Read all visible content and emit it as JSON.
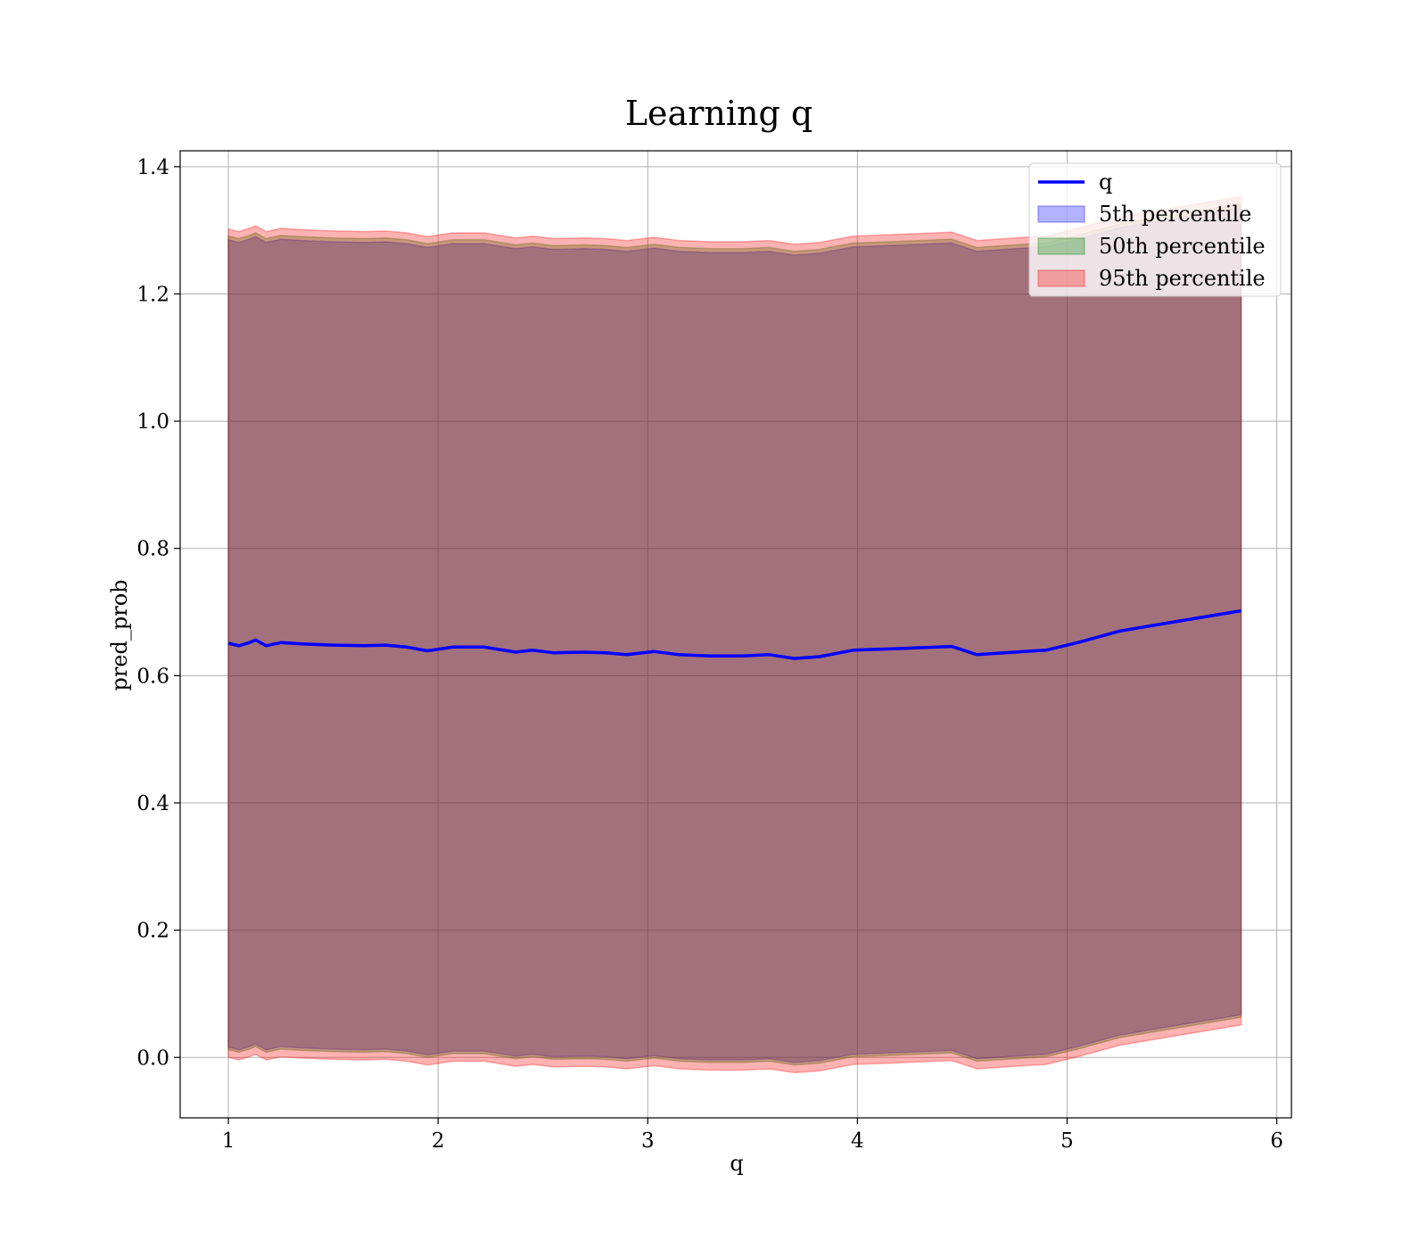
{
  "chart_data": {
    "type": "area",
    "title": "Learning q",
    "xlabel": "q",
    "ylabel": "pred_prob",
    "xlim": [
      0.77,
      6.07
    ],
    "ylim": [
      -0.095,
      1.425
    ],
    "xticks": [
      1,
      2,
      3,
      4,
      5,
      6
    ],
    "yticks": [
      0.0,
      0.2,
      0.4,
      0.6,
      0.8,
      1.0,
      1.2,
      1.4
    ],
    "xtick_labels": [
      "1",
      "2",
      "3",
      "4",
      "5",
      "6"
    ],
    "ytick_labels": [
      "0.0",
      "0.2",
      "0.4",
      "0.6",
      "0.8",
      "1.0",
      "1.2",
      "1.4"
    ],
    "grid": true,
    "legend_position": "top-right",
    "x": [
      1.0,
      1.05,
      1.1,
      1.13,
      1.18,
      1.25,
      1.35,
      1.5,
      1.65,
      1.75,
      1.85,
      1.95,
      2.07,
      2.22,
      2.37,
      2.45,
      2.55,
      2.7,
      2.8,
      2.9,
      3.03,
      3.15,
      3.3,
      3.45,
      3.58,
      3.7,
      3.82,
      3.98,
      4.15,
      4.45,
      4.57,
      4.75,
      4.9,
      5.05,
      5.25,
      5.5,
      5.83
    ],
    "series": [
      {
        "name": "q",
        "kind": "line",
        "color": "#0000ff",
        "values": [
          0.651,
          0.647,
          0.652,
          0.656,
          0.647,
          0.652,
          0.65,
          0.648,
          0.647,
          0.648,
          0.645,
          0.639,
          0.645,
          0.645,
          0.637,
          0.64,
          0.636,
          0.637,
          0.636,
          0.633,
          0.638,
          0.633,
          0.631,
          0.631,
          0.633,
          0.627,
          0.63,
          0.64,
          0.642,
          0.646,
          0.633,
          0.637,
          0.64,
          0.652,
          0.67,
          0.684,
          0.702
        ]
      },
      {
        "name": "5th percentile",
        "kind": "band",
        "color": "#0000ff",
        "lower": [
          0.016,
          0.012,
          0.017,
          0.021,
          0.012,
          0.017,
          0.015,
          0.013,
          0.012,
          0.013,
          0.01,
          0.004,
          0.01,
          0.01,
          0.002,
          0.005,
          0.001,
          0.002,
          0.001,
          -0.002,
          0.003,
          -0.002,
          -0.004,
          -0.004,
          -0.002,
          -0.008,
          -0.005,
          0.005,
          0.007,
          0.011,
          -0.002,
          0.002,
          0.005,
          0.017,
          0.035,
          0.049,
          0.067
        ],
        "upper": [
          1.285,
          1.281,
          1.286,
          1.29,
          1.281,
          1.286,
          1.284,
          1.282,
          1.281,
          1.282,
          1.279,
          1.273,
          1.279,
          1.279,
          1.271,
          1.274,
          1.27,
          1.271,
          1.27,
          1.267,
          1.272,
          1.267,
          1.265,
          1.265,
          1.267,
          1.261,
          1.264,
          1.274,
          1.276,
          1.28,
          1.267,
          1.271,
          1.274,
          1.286,
          1.304,
          1.318,
          1.336
        ]
      },
      {
        "name": "50th percentile",
        "kind": "band",
        "color": "#008000",
        "lower": [
          0.012,
          0.008,
          0.013,
          0.017,
          0.008,
          0.013,
          0.011,
          0.009,
          0.008,
          0.009,
          0.006,
          0.0,
          0.006,
          0.006,
          -0.002,
          0.001,
          -0.003,
          -0.002,
          -0.003,
          -0.006,
          -0.001,
          -0.006,
          -0.008,
          -0.008,
          -0.006,
          -0.012,
          -0.009,
          0.001,
          0.003,
          0.007,
          -0.006,
          -0.002,
          0.001,
          0.013,
          0.031,
          0.045,
          0.063
        ],
        "upper": [
          1.291,
          1.287,
          1.292,
          1.296,
          1.287,
          1.292,
          1.29,
          1.288,
          1.287,
          1.288,
          1.285,
          1.279,
          1.285,
          1.285,
          1.277,
          1.28,
          1.276,
          1.277,
          1.276,
          1.273,
          1.278,
          1.273,
          1.271,
          1.271,
          1.273,
          1.267,
          1.27,
          1.28,
          1.282,
          1.286,
          1.273,
          1.277,
          1.28,
          1.292,
          1.31,
          1.324,
          1.342
        ]
      },
      {
        "name": "95th percentile",
        "kind": "band",
        "color": "#ff0000",
        "lower": [
          0.0,
          -0.004,
          0.001,
          0.005,
          -0.004,
          0.001,
          -0.001,
          -0.003,
          -0.004,
          -0.003,
          -0.006,
          -0.012,
          -0.006,
          -0.006,
          -0.014,
          -0.011,
          -0.015,
          -0.014,
          -0.015,
          -0.018,
          -0.013,
          -0.018,
          -0.02,
          -0.02,
          -0.018,
          -0.024,
          -0.021,
          -0.011,
          -0.009,
          -0.005,
          -0.018,
          -0.014,
          -0.011,
          0.001,
          0.019,
          0.033,
          0.051
        ],
        "upper": [
          1.302,
          1.298,
          1.303,
          1.307,
          1.298,
          1.303,
          1.301,
          1.299,
          1.298,
          1.299,
          1.296,
          1.29,
          1.296,
          1.296,
          1.288,
          1.291,
          1.287,
          1.288,
          1.287,
          1.284,
          1.289,
          1.284,
          1.282,
          1.282,
          1.284,
          1.278,
          1.281,
          1.291,
          1.293,
          1.297,
          1.284,
          1.288,
          1.291,
          1.303,
          1.321,
          1.335,
          1.353
        ]
      }
    ]
  }
}
